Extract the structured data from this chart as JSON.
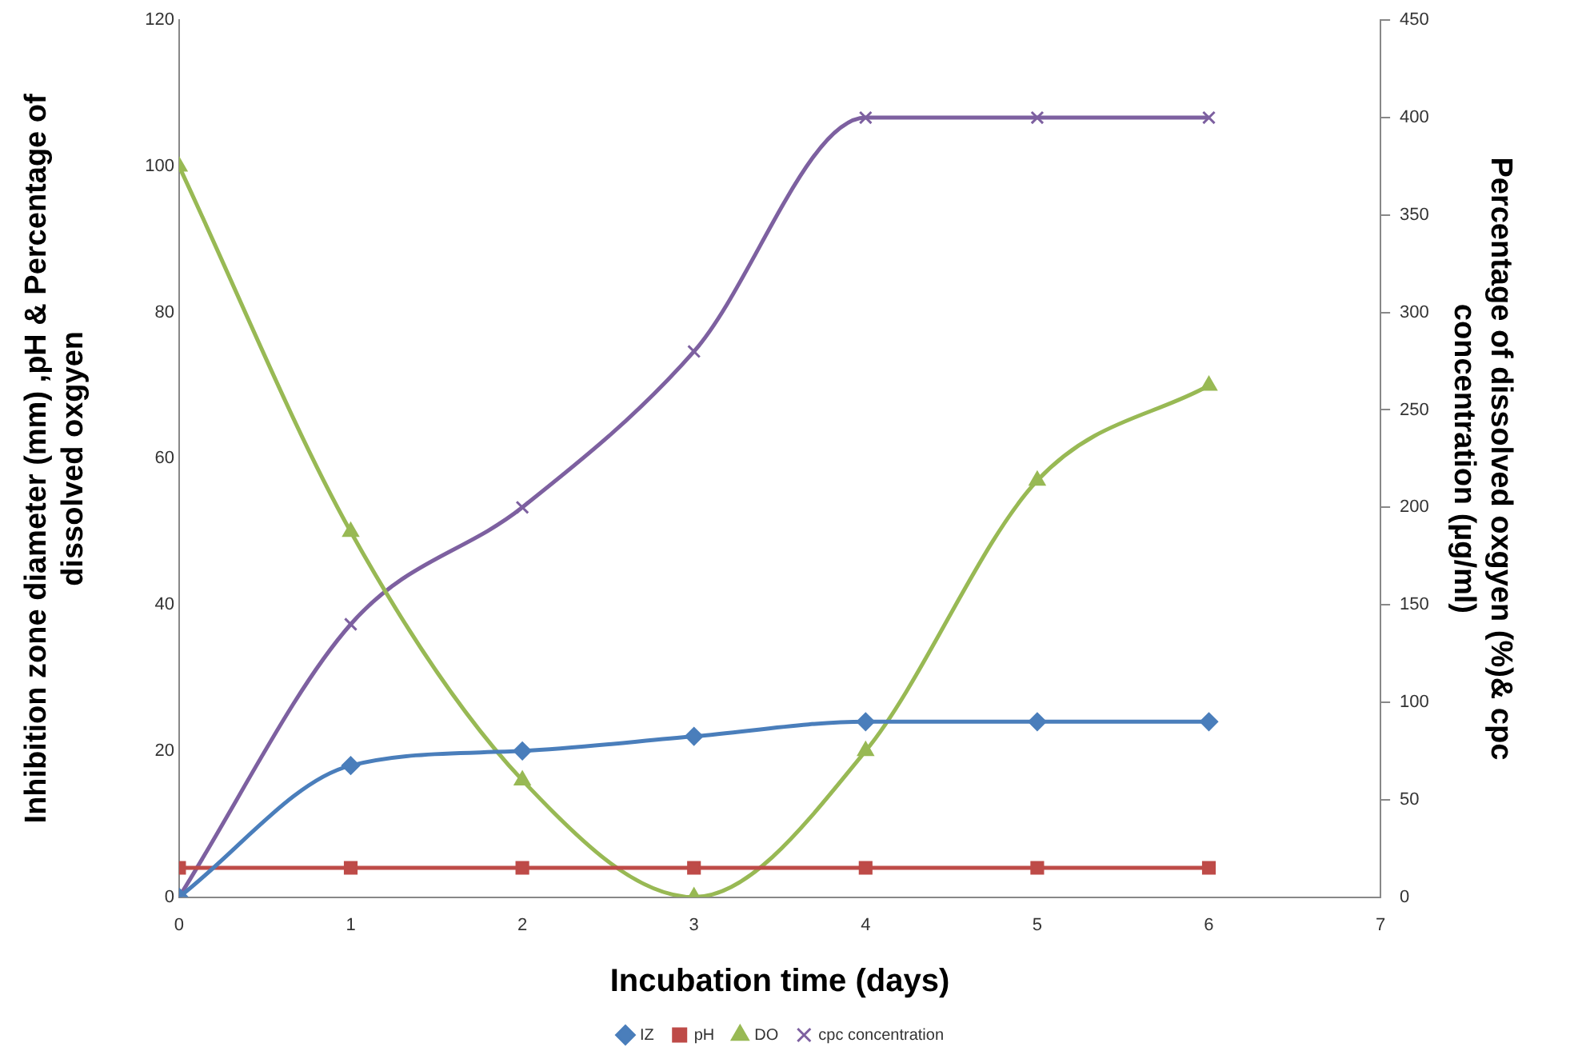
{
  "chart_data": {
    "type": "line",
    "xlabel": "Incubation time (days)",
    "ylabel": "Inhibition zone diameter (mm) ,pH & Percentage of dissolved oxgyen",
    "y2label": "Percentage of dissolved oxgyen (%)& cpc concentration (µg/ml)",
    "x": [
      0,
      1,
      2,
      3,
      4,
      5,
      6
    ],
    "xlim": [
      0,
      7
    ],
    "xticks": [
      0,
      1,
      2,
      3,
      4,
      5,
      6,
      7
    ],
    "ylim": [
      0,
      120
    ],
    "yticks": [
      0,
      20,
      40,
      60,
      80,
      100,
      120
    ],
    "y2lim": [
      0,
      450
    ],
    "y2ticks": [
      0,
      50,
      100,
      150,
      200,
      250,
      300,
      350,
      400,
      450
    ],
    "grid": false,
    "legend": "bottom",
    "series": [
      {
        "name": "IZ",
        "color": "#4a7ebb",
        "marker": "diamond",
        "values": [
          0,
          18,
          20,
          22,
          24,
          24,
          24
        ]
      },
      {
        "name": "pH",
        "color": "#be4b48",
        "marker": "square",
        "values": [
          4,
          4,
          4,
          4,
          4,
          4,
          4
        ]
      },
      {
        "name": "DO",
        "color": "#98b954",
        "marker": "triangle",
        "values": [
          100,
          50,
          16,
          0,
          20,
          57,
          70
        ]
      },
      {
        "name": "cpc concentration",
        "color": "#7d60a0",
        "marker": "cross",
        "axis": "y2",
        "values": [
          0,
          140,
          200,
          280,
          400,
          400,
          400
        ]
      }
    ]
  }
}
